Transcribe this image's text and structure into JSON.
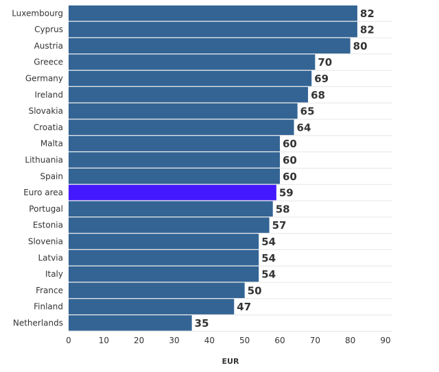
{
  "chart_data": {
    "type": "bar",
    "orientation": "horizontal",
    "categories": [
      "Luxembourg",
      "Cyprus",
      "Austria",
      "Greece",
      "Germany",
      "Ireland",
      "Slovakia",
      "Croatia",
      "Malta",
      "Lithuania",
      "Spain",
      "Euro area",
      "Portugal",
      "Estonia",
      "Slovenia",
      "Latvia",
      "Italy",
      "France",
      "Finland",
      "Netherlands"
    ],
    "values": [
      82,
      82,
      80,
      70,
      69,
      68,
      65,
      64,
      60,
      60,
      60,
      59,
      58,
      57,
      54,
      54,
      54,
      50,
      47,
      35
    ],
    "highlight": "Euro area",
    "xlabel": "EUR",
    "ylabel": "",
    "xlim": [
      0,
      90
    ],
    "xticks": [
      0,
      10,
      20,
      30,
      40,
      50,
      60,
      70,
      80,
      90
    ],
    "grid": "horizontal",
    "data_labels": true,
    "colors": {
      "bar": "#336494",
      "highlight": "#4419ff",
      "grid": "#e6e6e6",
      "text": "#333333"
    }
  }
}
